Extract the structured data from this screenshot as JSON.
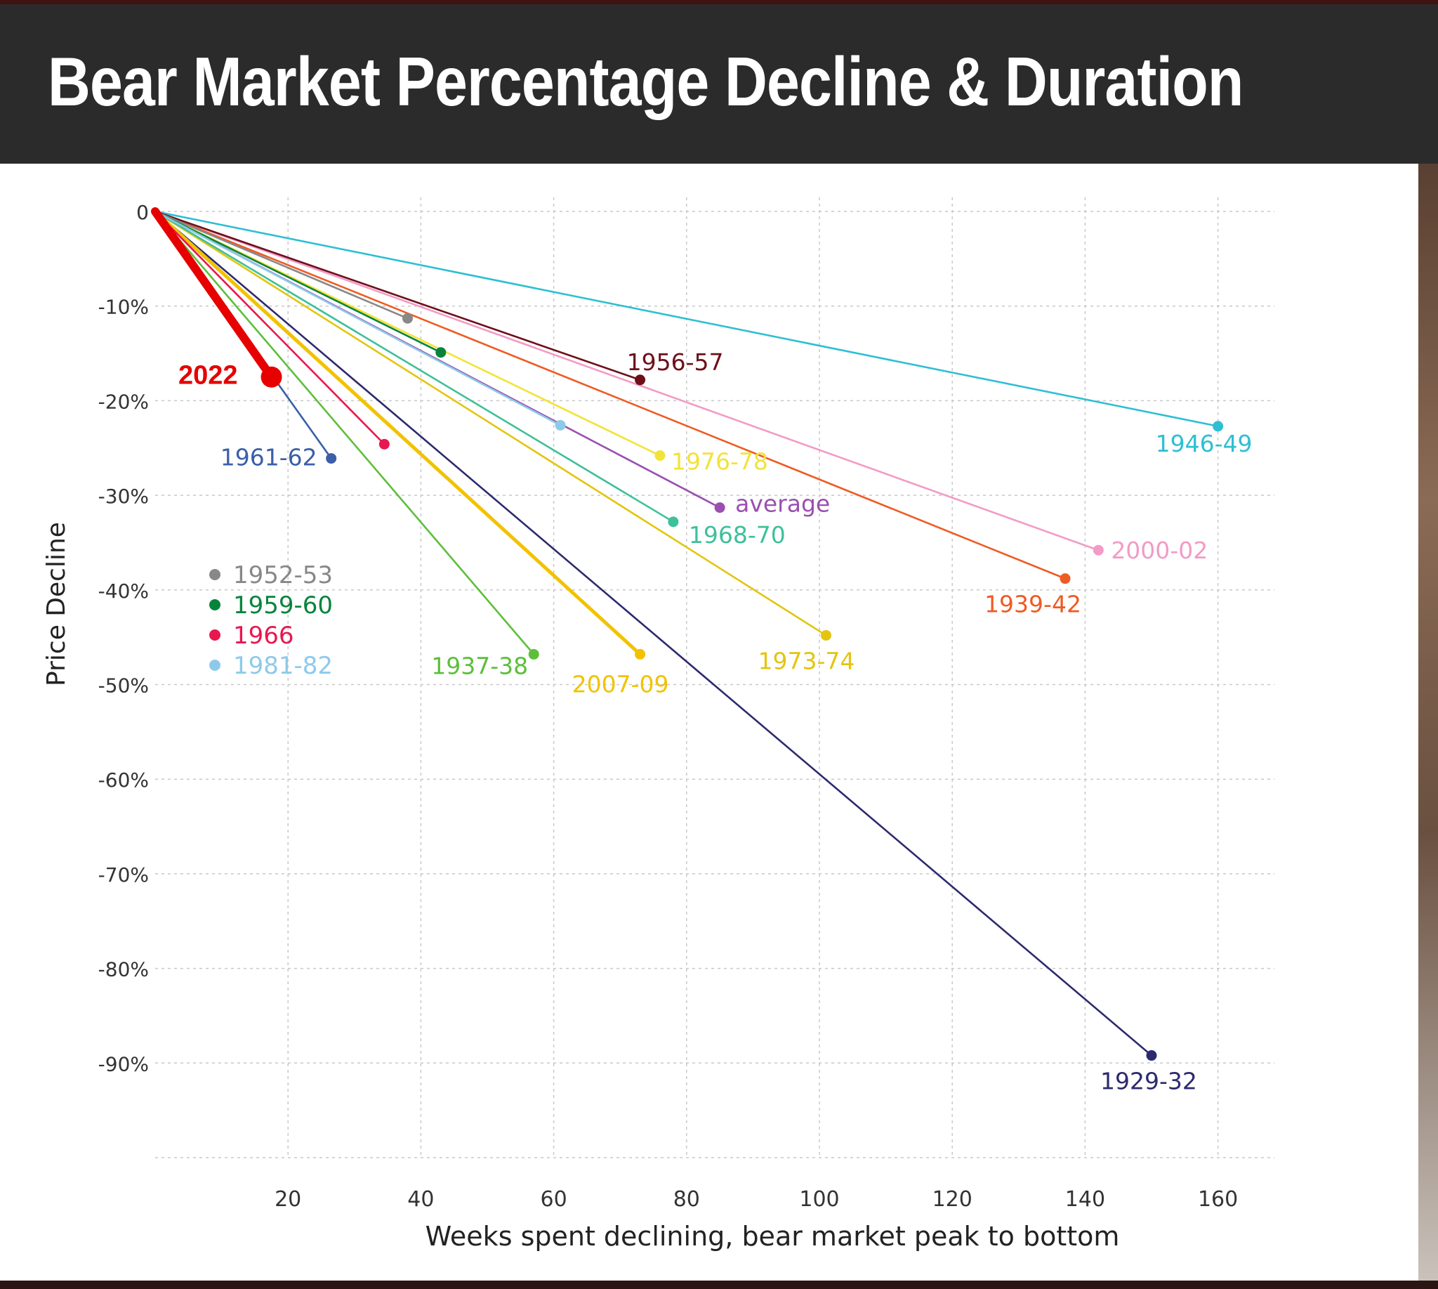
{
  "title": "Bear Market Percentage Decline & Duration",
  "chart_data": {
    "type": "line",
    "title": "Bear Market Percentage Decline & Duration",
    "xlabel": "Weeks spent declining, bear market peak to bottom",
    "ylabel": "Price Decline",
    "xlim": [
      0,
      167
    ],
    "ylim": [
      -100,
      0
    ],
    "x_ticks": [
      20,
      40,
      60,
      80,
      100,
      120,
      140,
      160
    ],
    "x_tick_labels": [
      "20",
      "40",
      "60",
      "80",
      "100",
      "120",
      "140",
      "160"
    ],
    "y_ticks": [
      0,
      -10,
      -20,
      -30,
      -40,
      -50,
      -60,
      -70,
      -80,
      -90
    ],
    "y_tick_labels": [
      "0",
      "-10%",
      "-20%",
      "-30%",
      "-40%",
      "-50%",
      "-60%",
      "-70%",
      "-80%",
      "-90%"
    ],
    "grid": true,
    "origin": [
      0,
      0
    ],
    "series": [
      {
        "name": "1946-49",
        "color": "#2ebfd3",
        "end": [
          160,
          -22.7
        ],
        "label_dx": -20,
        "label_dy": 36,
        "label_anchor": "middle"
      },
      {
        "name": "2000-02",
        "color": "#f29bc6",
        "end": [
          142,
          -35.8
        ],
        "label_dx": 18,
        "label_dy": 12,
        "label_anchor": "start"
      },
      {
        "name": "1939-42",
        "color": "#ee5b24",
        "end": [
          137,
          -38.8
        ],
        "label_dx": -46,
        "label_dy": 48,
        "label_anchor": "middle"
      },
      {
        "name": "1929-32",
        "color": "#2c2a6e",
        "end": [
          150,
          -89.2
        ],
        "label_dx": -4,
        "label_dy": 48,
        "label_anchor": "middle"
      },
      {
        "name": "1973-74",
        "color": "#e3c50f",
        "end": [
          101,
          -44.8
        ],
        "label_dx": -28,
        "label_dy": 48,
        "label_anchor": "middle"
      },
      {
        "name": "2007-09",
        "color": "#f2c200",
        "end": [
          73,
          -46.8
        ],
        "label_dx": -28,
        "label_dy": 54,
        "label_anchor": "middle",
        "width": 5
      },
      {
        "name": "1937-38",
        "color": "#5cbf3a",
        "end": [
          57,
          -46.8
        ],
        "label_dx": -77,
        "label_dy": 28,
        "label_anchor": "middle"
      },
      {
        "name": "1968-70",
        "color": "#3fc09a",
        "end": [
          78,
          -32.8
        ],
        "label_dx": 22,
        "label_dy": 30,
        "label_anchor": "start"
      },
      {
        "name": "average",
        "color": "#9b4fb0",
        "end": [
          85,
          -31.3
        ],
        "label_dx": 22,
        "label_dy": 6,
        "label_anchor": "start"
      },
      {
        "name": "1976-78",
        "color": "#f2e33a",
        "end": [
          76,
          -25.8
        ],
        "label_dx": 16,
        "label_dy": 20,
        "label_anchor": "start"
      },
      {
        "name": "1956-57",
        "color": "#6e0f1a",
        "end": [
          73,
          -17.8
        ],
        "label_dx": 50,
        "label_dy": -14,
        "label_anchor": "middle"
      },
      {
        "name": "1961-62",
        "color": "#3b5fa8",
        "end": [
          26.5,
          -26.1
        ],
        "label_dx": -20,
        "label_dy": 10,
        "label_anchor": "end"
      },
      {
        "name": "1966",
        "color": "#e8174f",
        "end": [
          34.5,
          -24.6
        ],
        "label": false
      },
      {
        "name": "1952-53",
        "color": "#888888",
        "end": [
          38,
          -11.3
        ],
        "label": false
      },
      {
        "name": "1959-60",
        "color": "#07843c",
        "end": [
          43,
          -14.9
        ],
        "label": false
      },
      {
        "name": "1981-82",
        "color": "#8dcaea",
        "end": [
          61,
          -22.6
        ],
        "label": false
      },
      {
        "name": "2022",
        "color": "#e60000",
        "end": [
          17.5,
          -17.5
        ],
        "label_dx": -48,
        "label_dy": 10,
        "label_anchor": "end",
        "bold": true,
        "width": 12,
        "marker": 15
      }
    ],
    "legend": {
      "placement": "left-middle",
      "entries": [
        {
          "name": "1952-53",
          "color": "#888888"
        },
        {
          "name": "1959-60",
          "color": "#07843c"
        },
        {
          "name": "1966",
          "color": "#e8174f"
        },
        {
          "name": "1981-82",
          "color": "#8dcaea"
        }
      ]
    }
  }
}
